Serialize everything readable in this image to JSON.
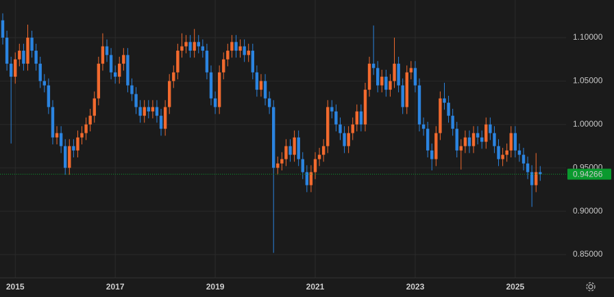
{
  "chart_data": {
    "type": "candlestick",
    "categories": [
      null,
      null,
      null,
      "2015",
      null,
      null,
      null,
      null,
      null,
      null,
      null,
      null,
      null,
      null,
      null,
      null,
      null,
      null,
      null,
      null,
      null,
      null,
      null,
      null,
      null,
      null,
      null,
      "2017",
      null,
      null,
      null,
      null,
      null,
      null,
      null,
      null,
      null,
      null,
      null,
      null,
      null,
      null,
      null,
      null,
      null,
      null,
      null,
      null,
      null,
      null,
      null,
      "2019",
      null,
      null,
      null,
      null,
      null,
      null,
      null,
      null,
      null,
      null,
      null,
      null,
      null,
      null,
      null,
      null,
      null,
      null,
      null,
      null,
      null,
      null,
      null,
      "2021",
      null,
      null,
      null,
      null,
      null,
      null,
      null,
      null,
      null,
      null,
      null,
      null,
      null,
      null,
      null,
      null,
      null,
      null,
      null,
      null,
      null,
      null,
      null,
      "2023",
      null,
      null,
      null,
      null,
      null,
      null,
      null,
      null,
      null,
      null,
      null,
      null,
      null,
      null,
      null,
      null,
      null,
      null,
      null,
      null,
      null,
      null,
      null,
      "2025",
      null,
      null,
      null,
      null,
      null,
      null
    ],
    "open": [
      1.12,
      1.1,
      1.07,
      1.055,
      1.075,
      1.085,
      1.07,
      1.1,
      1.085,
      1.07,
      1.05,
      1.045,
      1.02,
      0.985,
      0.99,
      0.975,
      0.95,
      0.975,
      0.97,
      0.985,
      0.99,
      1.0,
      1.01,
      1.03,
      1.07,
      1.09,
      1.08,
      1.06,
      1.055,
      1.07,
      1.08,
      1.045,
      1.035,
      1.02,
      1.01,
      1.02,
      1.015,
      1.02,
      1.01,
      0.995,
      1.02,
      1.05,
      1.06,
      1.085,
      1.09,
      1.095,
      1.085,
      1.095,
      1.09,
      1.085,
      1.06,
      1.03,
      1.02,
      1.06,
      1.075,
      1.085,
      1.095,
      1.085,
      1.09,
      1.08,
      1.085,
      1.06,
      1.04,
      1.05,
      1.03,
      1.02,
      0.95,
      0.955,
      0.96,
      0.975,
      0.965,
      0.985,
      0.96,
      0.945,
      0.93,
      0.945,
      0.96,
      0.965,
      0.975,
      1.02,
      1.015,
      1.0,
      0.99,
      0.975,
      0.99,
      1.0,
      1.015,
      1.0,
      1.04,
      1.07,
      1.065,
      1.045,
      1.055,
      1.04,
      1.05,
      1.07,
      1.045,
      1.02,
      1.06,
      1.065,
      1.045,
      1.0,
      0.995,
      0.97,
      0.96,
      0.99,
      1.03,
      1.025,
      1.01,
      0.995,
      0.97,
      0.975,
      0.985,
      0.975,
      0.99,
      0.985,
      0.98,
      1.0,
      0.99,
      0.975,
      0.96,
      0.965,
      0.97,
      0.99,
      0.97,
      0.965,
      0.955,
      0.945,
      0.93,
      0.945
    ],
    "high": [
      1.128,
      1.108,
      1.078,
      1.083,
      1.093,
      1.093,
      1.115,
      1.108,
      1.093,
      1.078,
      1.058,
      1.053,
      1.028,
      0.998,
      0.998,
      0.983,
      0.983,
      0.983,
      0.993,
      0.998,
      1.008,
      1.018,
      1.038,
      1.078,
      1.105,
      1.098,
      1.088,
      1.068,
      1.078,
      1.088,
      1.088,
      1.053,
      1.043,
      1.028,
      1.028,
      1.028,
      1.028,
      1.028,
      1.018,
      1.028,
      1.058,
      1.068,
      1.093,
      1.105,
      1.103,
      1.103,
      1.11,
      1.103,
      1.098,
      1.093,
      1.068,
      1.038,
      1.068,
      1.083,
      1.093,
      1.103,
      1.103,
      1.098,
      1.098,
      1.093,
      1.093,
      1.068,
      1.058,
      1.058,
      1.038,
      1.028,
      0.963,
      0.968,
      0.983,
      0.983,
      0.993,
      0.993,
      0.968,
      0.953,
      0.953,
      0.968,
      0.973,
      0.983,
      1.028,
      1.028,
      1.023,
      1.008,
      0.998,
      0.998,
      1.008,
      1.023,
      1.023,
      1.048,
      1.078,
      1.114,
      1.073,
      1.063,
      1.063,
      1.058,
      1.1,
      1.078,
      1.053,
      1.068,
      1.073,
      1.073,
      1.053,
      1.008,
      1.003,
      0.978,
      0.998,
      1.038,
      1.048,
      1.033,
      1.018,
      1.003,
      0.983,
      0.993,
      0.993,
      0.998,
      0.998,
      0.993,
      1.008,
      1.008,
      0.998,
      0.983,
      0.973,
      0.978,
      0.998,
      0.998,
      0.978,
      0.973,
      0.963,
      0.953,
      0.967,
      0.952
    ],
    "low": [
      1.092,
      1.062,
      0.978,
      1.047,
      1.067,
      1.062,
      1.062,
      1.077,
      1.062,
      1.042,
      1.037,
      1.012,
      0.977,
      0.977,
      0.967,
      0.942,
      0.942,
      0.962,
      0.962,
      0.977,
      0.982,
      0.992,
      1.002,
      1.022,
      1.062,
      1.072,
      1.052,
      1.047,
      1.047,
      1.062,
      1.037,
      1.027,
      1.012,
      1.002,
      1.002,
      1.007,
      1.007,
      1.002,
      0.987,
      0.987,
      1.012,
      1.042,
      1.052,
      1.077,
      1.082,
      1.077,
      1.077,
      1.082,
      1.077,
      1.052,
      1.022,
      1.012,
      1.012,
      1.052,
      1.067,
      1.077,
      1.077,
      1.077,
      1.072,
      1.072,
      1.052,
      1.032,
      1.032,
      1.022,
      1.012,
      0.852,
      0.942,
      0.947,
      0.952,
      0.957,
      0.957,
      0.952,
      0.937,
      0.922,
      0.922,
      0.937,
      0.952,
      0.957,
      0.967,
      1.007,
      0.992,
      0.982,
      0.967,
      0.967,
      0.982,
      0.992,
      0.992,
      0.992,
      1.032,
      1.057,
      1.037,
      1.037,
      1.032,
      1.032,
      1.042,
      1.037,
      1.012,
      1.012,
      1.052,
      1.037,
      0.992,
      0.987,
      0.962,
      0.947,
      0.952,
      0.982,
      1.017,
      1.002,
      0.987,
      0.962,
      0.948,
      0.967,
      0.967,
      0.967,
      0.977,
      0.972,
      0.972,
      0.982,
      0.967,
      0.952,
      0.952,
      0.957,
      0.962,
      0.962,
      0.957,
      0.947,
      0.937,
      0.905,
      0.922,
      0.935
    ],
    "close": [
      1.1,
      1.07,
      1.055,
      1.075,
      1.085,
      1.07,
      1.1,
      1.085,
      1.07,
      1.05,
      1.045,
      1.02,
      0.985,
      0.99,
      0.975,
      0.95,
      0.975,
      0.97,
      0.985,
      0.99,
      1.0,
      1.01,
      1.03,
      1.07,
      1.09,
      1.08,
      1.06,
      1.055,
      1.07,
      1.08,
      1.045,
      1.035,
      1.02,
      1.01,
      1.02,
      1.015,
      1.02,
      1.01,
      0.995,
      1.02,
      1.05,
      1.06,
      1.085,
      1.09,
      1.095,
      1.085,
      1.095,
      1.09,
      1.085,
      1.06,
      1.03,
      1.02,
      1.06,
      1.075,
      1.085,
      1.095,
      1.085,
      1.09,
      1.08,
      1.085,
      1.06,
      1.04,
      1.05,
      1.03,
      1.02,
      0.95,
      0.955,
      0.96,
      0.975,
      0.965,
      0.985,
      0.96,
      0.945,
      0.93,
      0.945,
      0.96,
      0.965,
      0.975,
      1.02,
      1.015,
      1.0,
      0.99,
      0.975,
      0.99,
      1.0,
      1.015,
      1.0,
      1.04,
      1.07,
      1.065,
      1.045,
      1.055,
      1.04,
      1.05,
      1.07,
      1.045,
      1.02,
      1.06,
      1.065,
      1.045,
      1.0,
      0.995,
      0.97,
      0.96,
      0.99,
      1.03,
      1.025,
      1.01,
      0.995,
      0.97,
      0.975,
      0.985,
      0.975,
      0.99,
      0.985,
      0.98,
      1.0,
      0.99,
      0.975,
      0.96,
      0.965,
      0.97,
      0.99,
      0.97,
      0.965,
      0.955,
      0.945,
      0.93,
      0.945,
      0.94266
    ],
    "up_color": "#f26a2e",
    "down_color": "#2b84e0",
    "ylim": [
      0.8232,
      1.1434
    ],
    "yticks": [
      {
        "value": 0.85,
        "label": "0.85000"
      },
      {
        "value": 0.9,
        "label": "0.90000"
      },
      {
        "value": 0.95,
        "label": "0.95000"
      },
      {
        "value": 1.0,
        "label": "1.00000"
      },
      {
        "value": 1.05,
        "label": "1.05000"
      },
      {
        "value": 1.1,
        "label": "1.10000"
      }
    ],
    "grid": true,
    "last_price": 0.94266,
    "last_price_color": "#0a9a2e"
  }
}
